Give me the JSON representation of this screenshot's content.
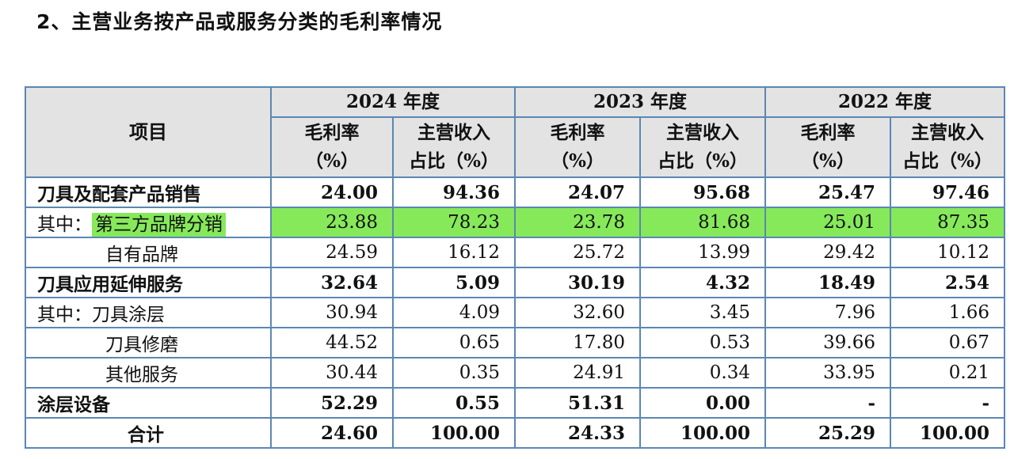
{
  "heading": "2、主营业务按产品或服务分类的毛利率情况",
  "table": {
    "item_header": "项目",
    "years": [
      "2024 年度",
      "2023 年度",
      "2022 年度"
    ],
    "sub_headers": {
      "margin_line1": "毛利率",
      "margin_line2": "（%）",
      "share_line1": "主营收入",
      "share_line2": "占比（%）"
    },
    "rows": [
      {
        "label": "刀具及配套产品销售",
        "values": [
          "24.00",
          "94.36",
          "24.07",
          "95.68",
          "25.47",
          "97.46"
        ]
      },
      {
        "prefix": "其中：",
        "label": "第三方品牌分销",
        "values": [
          "23.88",
          "78.23",
          "23.78",
          "81.68",
          "25.01",
          "87.35"
        ]
      },
      {
        "label": "自有品牌",
        "values": [
          "24.59",
          "16.12",
          "25.72",
          "13.99",
          "29.42",
          "10.12"
        ]
      },
      {
        "label": "刀具应用延伸服务",
        "values": [
          "32.64",
          "5.09",
          "30.19",
          "4.32",
          "18.49",
          "2.54"
        ]
      },
      {
        "label": "其中：刀具涂层",
        "values": [
          "30.94",
          "4.09",
          "32.60",
          "3.45",
          "7.96",
          "1.66"
        ]
      },
      {
        "label": "刀具修磨",
        "values": [
          "44.52",
          "0.65",
          "17.80",
          "0.53",
          "39.66",
          "0.67"
        ]
      },
      {
        "label": "其他服务",
        "values": [
          "30.44",
          "0.35",
          "24.91",
          "0.34",
          "33.95",
          "0.21"
        ]
      },
      {
        "label": "涂层设备",
        "values": [
          "52.29",
          "0.55",
          "51.31",
          "0.00",
          "-",
          "-"
        ]
      },
      {
        "label": "合计",
        "values": [
          "24.60",
          "100.00",
          "24.33",
          "100.00",
          "25.29",
          "100.00"
        ]
      }
    ]
  },
  "colors": {
    "highlight": "#86e95a",
    "header_bg": "#e3e3e3",
    "border": "#5b87b3"
  }
}
